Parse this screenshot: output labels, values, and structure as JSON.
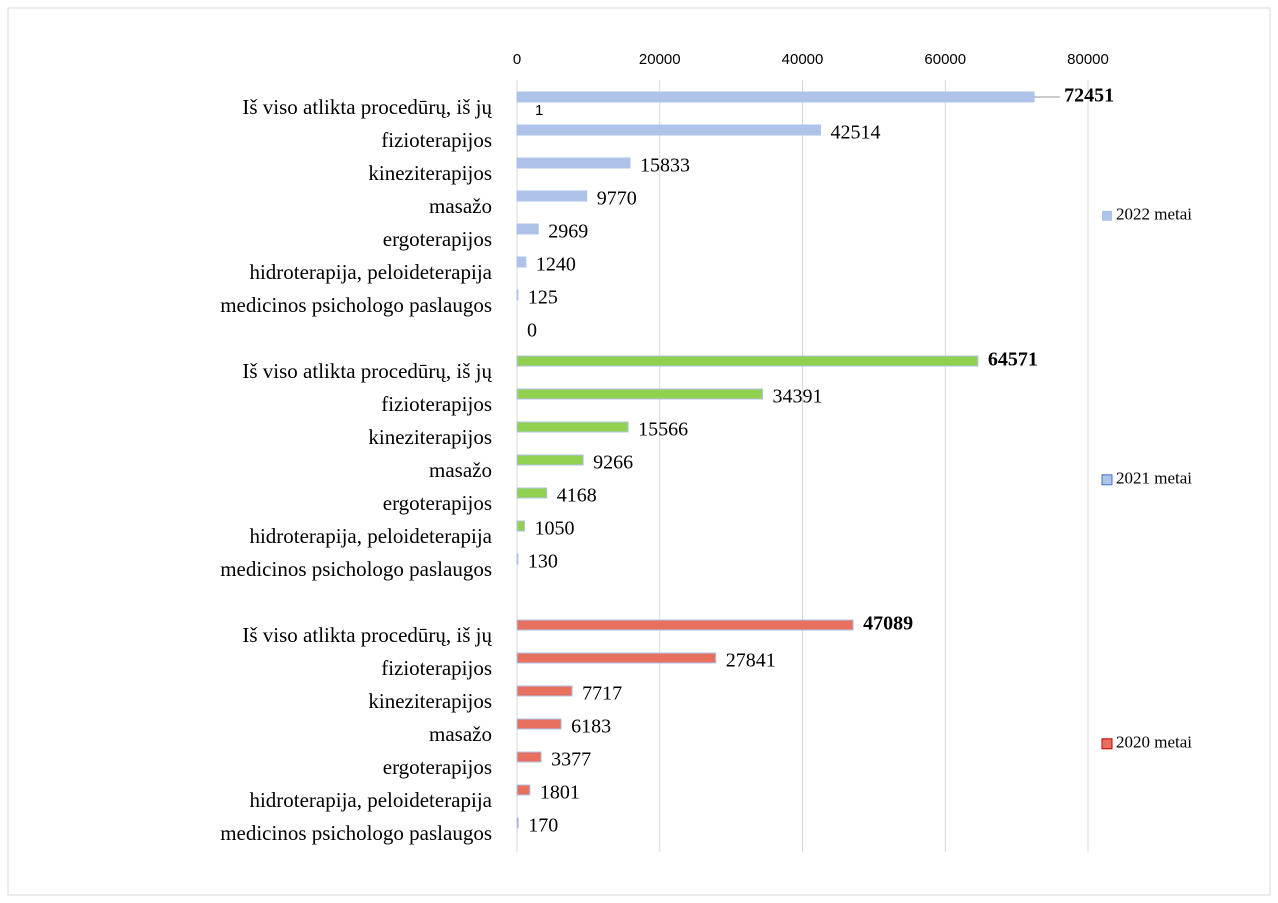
{
  "chart_data": {
    "type": "bar",
    "orientation": "horizontal",
    "xlim": [
      0,
      80000
    ],
    "xticks": [
      0,
      20000,
      40000,
      60000,
      80000
    ],
    "grid": true,
    "legend": "right",
    "annotations": [
      "1"
    ],
    "series": [
      {
        "name": "2022 metai",
        "color": "#aec3e8",
        "legend_color": "#aec3e8",
        "categories": [
          "Iš viso atlikta procedūrų, iš jų",
          "fizioterapijos",
          "kineziterapijos",
          "masažo",
          "ergoterapijos",
          "hidroterapija, peloideterapija",
          "medicinos psichologo paslaugos",
          null
        ],
        "values": [
          72451,
          42514,
          15833,
          9770,
          2969,
          1240,
          125,
          0
        ]
      },
      {
        "name": "2021  metai",
        "color": "#92d050",
        "legend_color": "#aec3e8",
        "categories": [
          "Iš viso atlikta procedūrų, iš jų",
          "fizioterapijos",
          "kineziterapijos",
          "masažo",
          "ergoterapijos",
          "hidroterapija, peloideterapija",
          "medicinos psichologo paslaugos"
        ],
        "values": [
          64571,
          34391,
          15566,
          9266,
          4168,
          1050,
          130
        ]
      },
      {
        "name": "2020 metai",
        "color": "#e8705f",
        "legend_color": "#e8705f",
        "categories": [
          "Iš viso atlikta procedūrų, iš jų",
          "fizioterapijos",
          "kineziterapijos",
          "masažo",
          "ergoterapijos",
          "hidroterapija, peloideterapija",
          "medicinos psichologo paslaugos"
        ],
        "values": [
          47089,
          27841,
          7717,
          6183,
          3377,
          1801,
          170
        ]
      }
    ]
  }
}
